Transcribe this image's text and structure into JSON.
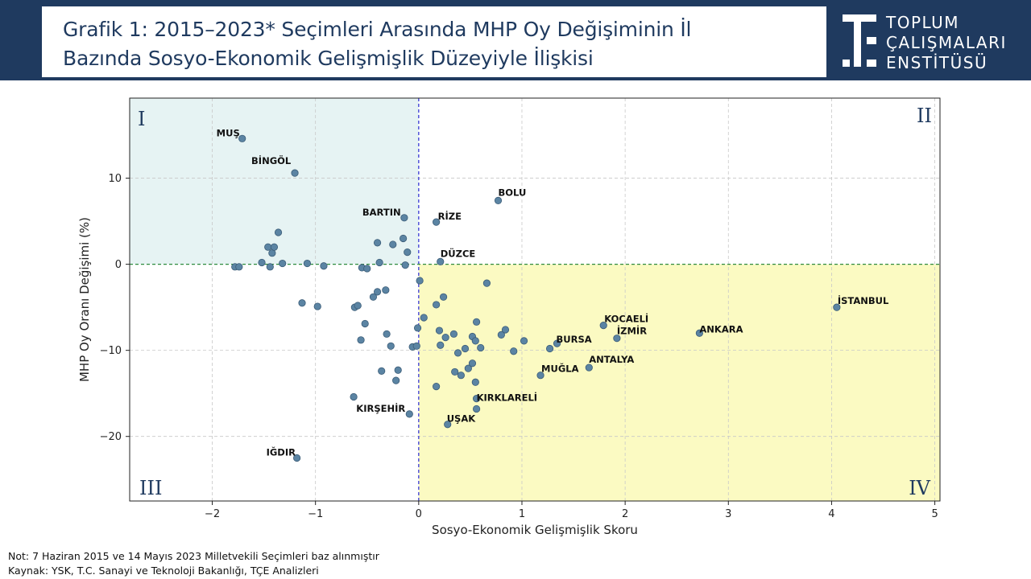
{
  "header": {
    "title_line1": "Grafik 1: 2015–2023* Seçimleri Arasında MHP Oy Değişiminin İl",
    "title_line2": "Bazında  Sosyo-Ekonomik Gelişmişlik Düzeyiyle İlişkisi",
    "logo_line1": "TOPLUM",
    "logo_line2": "ÇALIŞMALARI",
    "logo_line3": "ENSTİTÜSÜ"
  },
  "notes": {
    "line1": "Not: 7 Haziran 2015 ve 14 Mayıs 2023 Milletvekili Seçimleri baz alınmıştır",
    "line2": "Kaynak: YSK, T.C. Sanayi ve Teknoloji Bakanlığı, TÇE Analizleri"
  },
  "colors": {
    "header_bg": "#1f3a5f",
    "quadrant_I": "#e6f3f3",
    "quadrant_IV": "#fbfac2",
    "point": "#5b84a3",
    "vline": "#3b3bd6",
    "hline": "#2e8b3f"
  },
  "chart_data": {
    "type": "scatter",
    "title": "",
    "xlabel": "Sosyo-Ekonomik Gelişmişlik Skoru",
    "ylabel": "MHP Oy Oranı Değişimi (%)",
    "xlim": [
      -2.8,
      5.05
    ],
    "ylim": [
      -27.5,
      19.3
    ],
    "xticks": [
      -2,
      -1,
      0,
      1,
      2,
      3,
      4,
      5
    ],
    "xtick_labels": [
      "−2",
      "−1",
      "0",
      "1",
      "2",
      "3",
      "4",
      "5"
    ],
    "yticks": [
      -20,
      -10,
      0,
      10
    ],
    "ytick_labels": [
      "−20",
      "−10",
      "0",
      "10"
    ],
    "grid": true,
    "quadrant_labels": [
      "I",
      "II",
      "III",
      "IV"
    ],
    "labeled_points": [
      {
        "name": "MUŞ",
        "x": -1.71,
        "y": 14.6
      },
      {
        "name": "BİNGÖL",
        "x": -1.2,
        "y": 10.6
      },
      {
        "name": "BARTIN",
        "x": -0.14,
        "y": 5.4
      },
      {
        "name": "BOLU",
        "x": 0.77,
        "y": 7.4
      },
      {
        "name": "RİZE",
        "x": 0.17,
        "y": 4.9
      },
      {
        "name": "DÜZCE",
        "x": 0.21,
        "y": 0.3
      },
      {
        "name": "İSTANBUL",
        "x": 4.05,
        "y": -5.0
      },
      {
        "name": "KOCAELİ",
        "x": 1.79,
        "y": -7.1
      },
      {
        "name": "İZMİR",
        "x": 1.92,
        "y": -8.6
      },
      {
        "name": "ANKARA",
        "x": 2.72,
        "y": -8.0
      },
      {
        "name": "BURSA",
        "x": 1.34,
        "y": -9.2
      },
      {
        "name": "ANTALYA",
        "x": 1.65,
        "y": -12.0
      },
      {
        "name": "MUĞLA",
        "x": 1.18,
        "y": -12.9
      },
      {
        "name": "KIRKLARELİ",
        "x": 0.56,
        "y": -16.8
      },
      {
        "name": "UŞAK",
        "x": 0.28,
        "y": -18.6
      },
      {
        "name": "KIRŞEHİR",
        "x": -0.09,
        "y": -17.4
      },
      {
        "name": "IĞDIR",
        "x": -1.18,
        "y": -22.5
      }
    ],
    "points": [
      [
        -1.78,
        -0.3
      ],
      [
        -1.74,
        -0.3
      ],
      [
        -1.52,
        0.2
      ],
      [
        -1.46,
        2.0
      ],
      [
        -1.44,
        -0.3
      ],
      [
        -1.42,
        1.3
      ],
      [
        -1.4,
        2.0
      ],
      [
        -1.36,
        3.7
      ],
      [
        -1.32,
        0.1
      ],
      [
        -1.08,
        0.1
      ],
      [
        -0.92,
        -0.2
      ],
      [
        -0.55,
        -0.4
      ],
      [
        -0.5,
        -0.5
      ],
      [
        -0.4,
        2.5
      ],
      [
        -0.38,
        0.2
      ],
      [
        -0.25,
        2.3
      ],
      [
        -0.15,
        3.0
      ],
      [
        -0.13,
        -0.1
      ],
      [
        -0.11,
        1.4
      ],
      [
        -1.13,
        -4.5
      ],
      [
        -0.98,
        -4.9
      ],
      [
        -0.62,
        -5.0
      ],
      [
        -0.59,
        -4.8
      ],
      [
        -0.44,
        -3.8
      ],
      [
        -0.4,
        -3.2
      ],
      [
        -0.32,
        -3.0
      ],
      [
        -0.52,
        -6.9
      ],
      [
        -0.56,
        -8.8
      ],
      [
        -0.31,
        -8.1
      ],
      [
        -0.27,
        -9.5
      ],
      [
        -0.06,
        -9.6
      ],
      [
        -0.02,
        -9.5
      ],
      [
        -0.01,
        -7.4
      ],
      [
        0.01,
        -1.9
      ],
      [
        0.05,
        -6.2
      ],
      [
        -0.36,
        -12.4
      ],
      [
        -0.2,
        -12.3
      ],
      [
        -0.22,
        -13.5
      ],
      [
        -0.63,
        -15.4
      ],
      [
        0.17,
        -4.7
      ],
      [
        0.24,
        -3.8
      ],
      [
        0.2,
        -7.7
      ],
      [
        0.21,
        -9.4
      ],
      [
        0.26,
        -8.5
      ],
      [
        0.34,
        -8.1
      ],
      [
        0.38,
        -10.3
      ],
      [
        0.45,
        -9.8
      ],
      [
        0.52,
        -8.4
      ],
      [
        0.55,
        -8.9
      ],
      [
        0.6,
        -9.7
      ],
      [
        0.56,
        -6.7
      ],
      [
        0.66,
        -2.2
      ],
      [
        0.8,
        -8.2
      ],
      [
        0.84,
        -7.6
      ],
      [
        0.92,
        -10.1
      ],
      [
        1.02,
        -8.9
      ],
      [
        1.27,
        -9.8
      ],
      [
        0.35,
        -12.5
      ],
      [
        0.41,
        -12.9
      ],
      [
        0.48,
        -12.1
      ],
      [
        0.52,
        -11.5
      ],
      [
        0.55,
        -13.7
      ],
      [
        0.56,
        -15.6
      ],
      [
        0.17,
        -14.2
      ]
    ]
  }
}
